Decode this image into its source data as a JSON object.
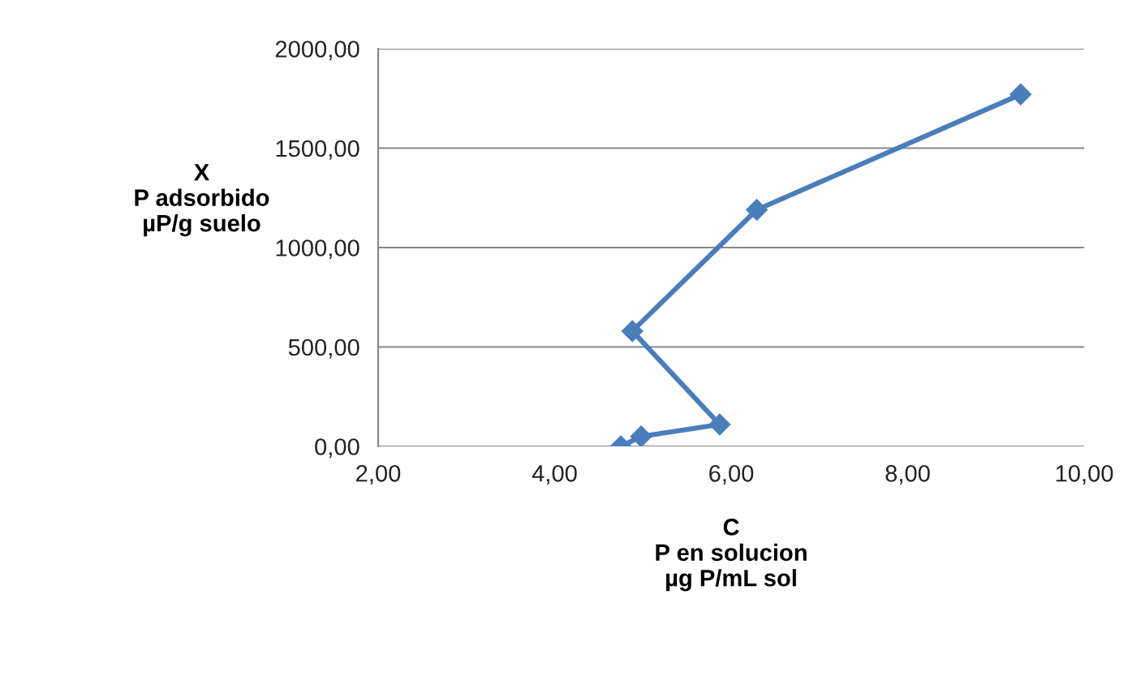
{
  "chart_data": {
    "type": "line",
    "xlabel": "C\nP en solucion\nµg P/mL sol",
    "ylabel": "X\nP adsorbido\nµP/g suelo",
    "x": [
      4.75,
      4.98,
      5.87,
      4.88,
      6.29,
      9.28
    ],
    "series": [
      {
        "color": "#4a7ebb",
        "values": [
          0,
          50,
          110,
          580,
          1190,
          1770
        ]
      }
    ],
    "xlim": [
      2,
      10
    ],
    "xticks": [
      {
        "value": 2,
        "label": "2,00"
      },
      {
        "value": 4,
        "label": "4,00"
      },
      {
        "value": 6,
        "label": "6,00"
      },
      {
        "value": 8,
        "label": "8,00"
      },
      {
        "value": 10,
        "label": "10,00"
      }
    ],
    "ylim": [
      0,
      2000
    ],
    "yticks": [
      {
        "value": 0,
        "label": "0,00"
      },
      {
        "value": 500,
        "label": "500,00"
      },
      {
        "value": 1000,
        "label": "1000,00"
      },
      {
        "value": 1500,
        "label": "1500,00"
      },
      {
        "value": 2000,
        "label": "2000,00"
      }
    ],
    "grid": "y",
    "marker": "diamond",
    "line_style": "solid",
    "legend": false
  }
}
